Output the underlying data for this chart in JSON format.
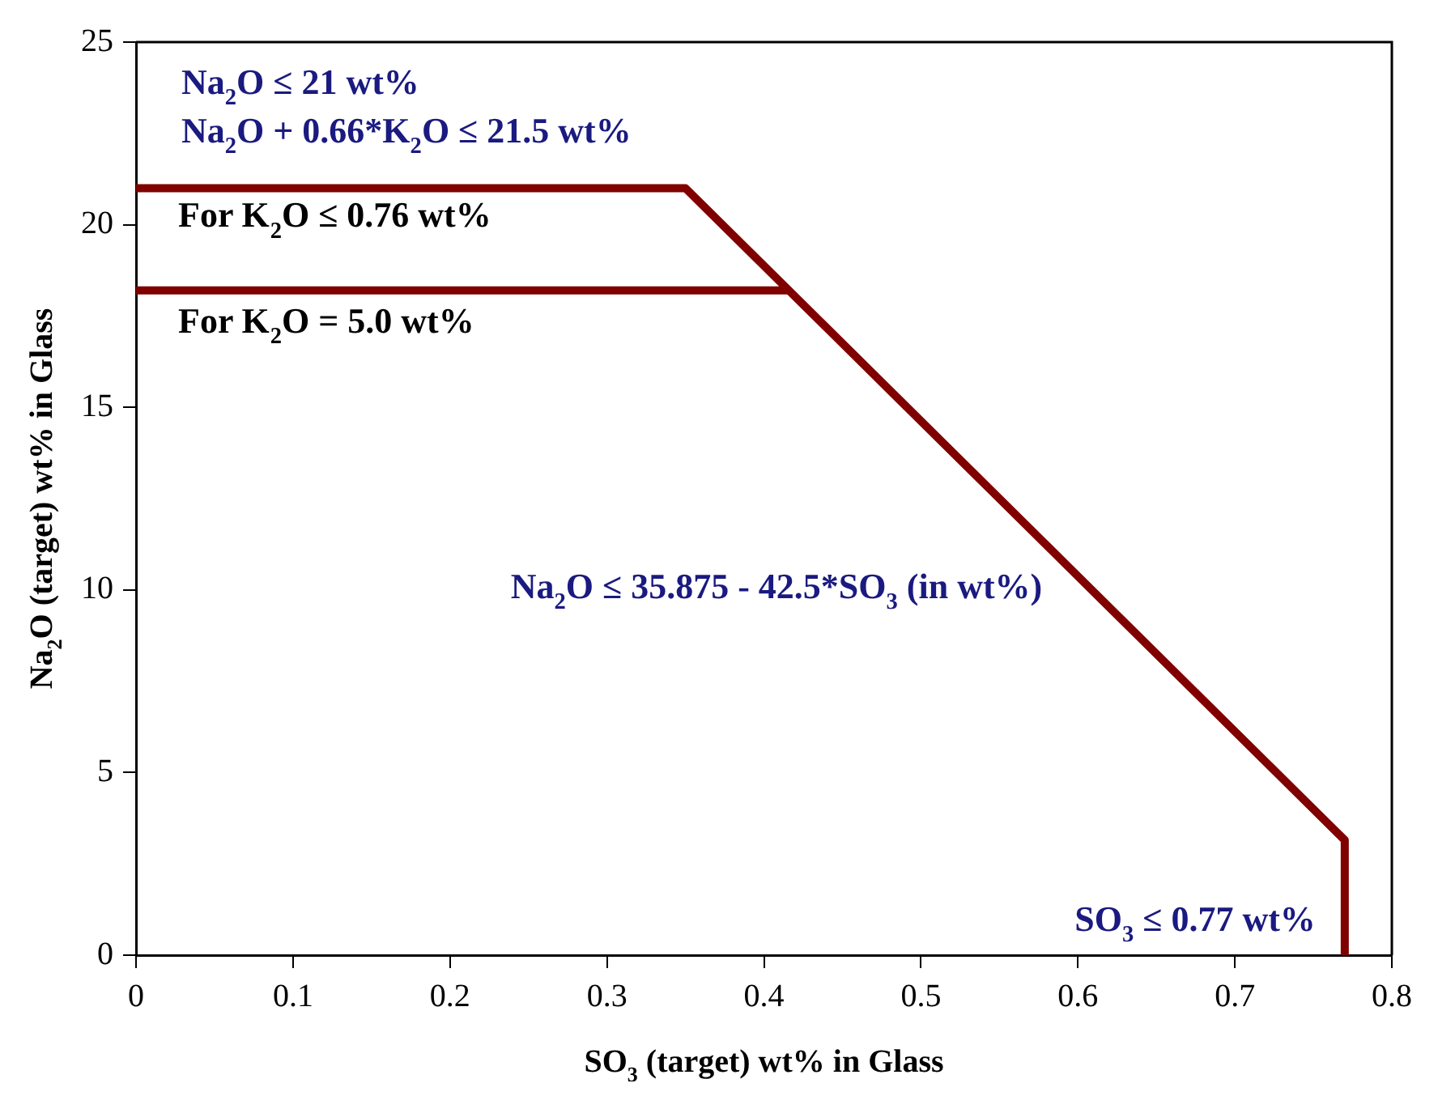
{
  "chart_data": {
    "type": "line",
    "xlabel": "SO$_{3}$ (target) wt% in Glass",
    "ylabel": "Na$_{2}$O (target) wt% in Glass",
    "xlim": [
      0,
      0.8
    ],
    "xticks": [
      0,
      0.1,
      0.2,
      0.3,
      0.4,
      0.5,
      0.6,
      0.7,
      0.8
    ],
    "ylim": [
      0,
      25
    ],
    "yticks": [
      0,
      5,
      10,
      15,
      20,
      25
    ],
    "legend": false,
    "marker": "none",
    "line_style": "solid",
    "series": [
      {
        "color": "#800000",
        "x": [
          0,
          0.35,
          0.77,
          0.77
        ],
        "values": [
          21,
          21,
          3.15,
          0
        ]
      },
      {
        "color": "#800000",
        "x": [
          0,
          0.416
        ],
        "values": [
          18.2,
          18.2
        ]
      }
    ],
    "annotations": [
      "Na$_{2}$O ≤ 21 wt%",
      "Na$_{2}$O + 0.66*K$_{2}$O ≤ 21.5 wt%",
      {
        "text": "For K$_{2}$O ≤ 0.76 wt%",
        "x": 0,
        "y": 21
      },
      {
        "text": "For K$_{2}$O = 5.0 wt%",
        "x": 0,
        "y": 18.2
      },
      {
        "text": "Na$_{2}$O ≤ 35.875 - 42.5*SO$_{3}$ (in wt%)",
        "x": 0.6,
        "y": 10.4
      },
      {
        "text": "SO$_{3}$ ≤ 0.77 wt%",
        "x": 0.77,
        "y": 3.15
      }
    ]
  }
}
